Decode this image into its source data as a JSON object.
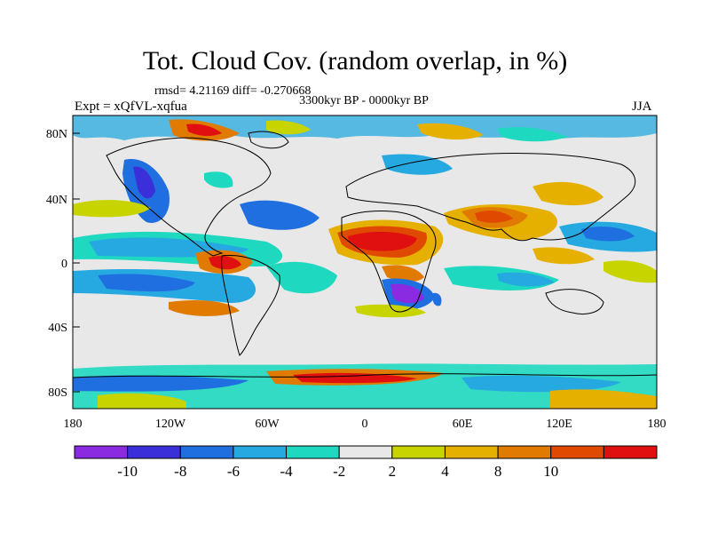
{
  "title": "Tot. Cloud Cov. (random overlap, in %)",
  "stats": "rmsd= 4.21169 diff= -0.270668",
  "period": "3300kyr BP - 0000kyr BP",
  "experiment": "Expt = xQfVL-xqfua",
  "season": "JJA",
  "lat_ticks": [
    "80N",
    "40N",
    "0",
    "40S",
    "80S"
  ],
  "lon_ticks": [
    "180",
    "120W",
    "60W",
    "0",
    "60E",
    "120E",
    "180"
  ],
  "colorbar": {
    "labels": [
      "-10",
      "-8",
      "-6",
      "-4",
      "-2",
      "2",
      "4",
      "8",
      "10"
    ],
    "colors": [
      "#8a2be2",
      "#3a2fd8",
      "#1f6fe0",
      "#26a9e0",
      "#1fd8c0",
      "#e8e8e8",
      "#c8d400",
      "#e6b000",
      "#e07a00",
      "#e04a00",
      "#e01010"
    ]
  }
}
